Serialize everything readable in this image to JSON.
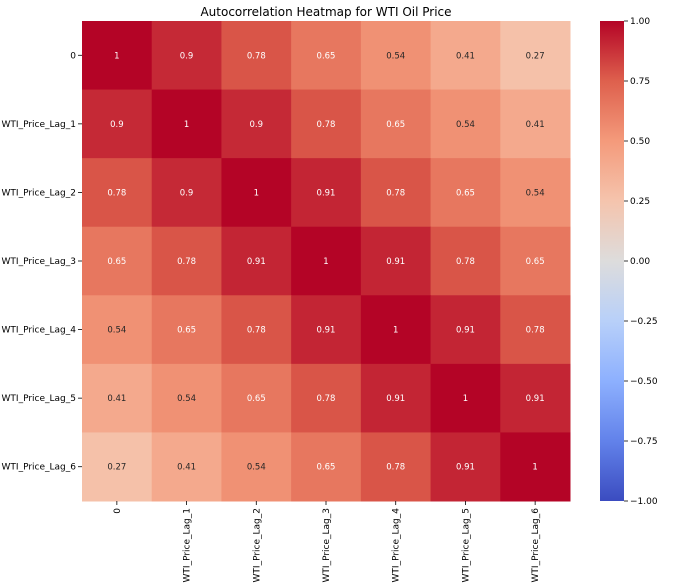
{
  "chart_data": {
    "type": "heatmap",
    "title": "Autocorrelation Heatmap for WTI Oil Price",
    "row_labels": [
      "0",
      "WTI_Price_Lag_1",
      "WTI_Price_Lag_2",
      "WTI_Price_Lag_3",
      "WTI_Price_Lag_4",
      "WTI_Price_Lag_5",
      "WTI_Price_Lag_6"
    ],
    "col_labels": [
      "0",
      "WTI_Price_Lag_1",
      "WTI_Price_Lag_2",
      "WTI_Price_Lag_3",
      "WTI_Price_Lag_4",
      "WTI_Price_Lag_5",
      "WTI_Price_Lag_6"
    ],
    "values": [
      [
        1,
        0.9,
        0.78,
        0.65,
        0.54,
        0.41,
        0.27
      ],
      [
        0.9,
        1,
        0.9,
        0.78,
        0.65,
        0.54,
        0.41
      ],
      [
        0.78,
        0.9,
        1,
        0.91,
        0.78,
        0.65,
        0.54
      ],
      [
        0.65,
        0.78,
        0.91,
        1,
        0.91,
        0.78,
        0.65
      ],
      [
        0.54,
        0.65,
        0.78,
        0.91,
        1,
        0.91,
        0.78
      ],
      [
        0.41,
        0.54,
        0.65,
        0.78,
        0.91,
        1,
        0.91
      ],
      [
        0.27,
        0.41,
        0.54,
        0.65,
        0.78,
        0.91,
        1
      ]
    ],
    "colormap": "coolwarm",
    "vmin": -1.0,
    "vmax": 1.0,
    "colorbar_ticks": [
      "1.00",
      "0.75",
      "0.50",
      "0.25",
      "0.00",
      "−0.25",
      "−0.50",
      "−0.75",
      "−1.00"
    ],
    "colorbar_tick_values": [
      1.0,
      0.75,
      0.5,
      0.25,
      0.0,
      -0.25,
      -0.5,
      -0.75,
      -1.0
    ],
    "annotations": true,
    "grid": false
  }
}
